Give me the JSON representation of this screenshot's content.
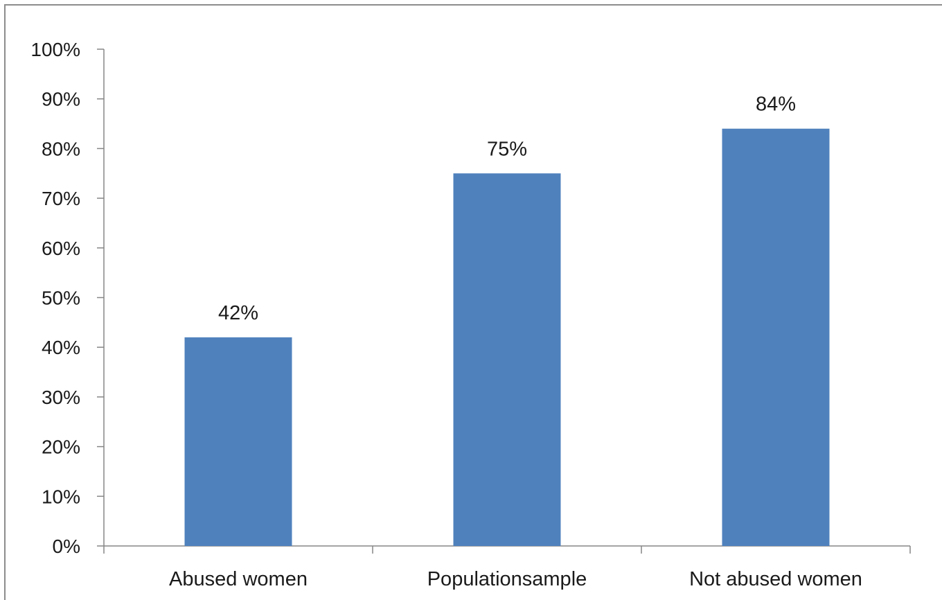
{
  "chart_data": {
    "type": "bar",
    "title": "",
    "xlabel": "",
    "ylabel": "",
    "categories": [
      "Abused women",
      "Populationsample",
      "Not abused women"
    ],
    "values": [
      42,
      75,
      84
    ],
    "data_labels": [
      "42%",
      "75%",
      "84%"
    ],
    "ylim": [
      0,
      100
    ],
    "yticks": [
      0,
      10,
      20,
      30,
      40,
      50,
      60,
      70,
      80,
      90,
      100
    ],
    "ytick_labels": [
      "0%",
      "10%",
      "20%",
      "30%",
      "40%",
      "50%",
      "60%",
      "70%",
      "80%",
      "90%",
      "100%"
    ],
    "grid": false,
    "legend": "none",
    "bar_color": "#4f81bd",
    "axis_color": "#868686"
  }
}
